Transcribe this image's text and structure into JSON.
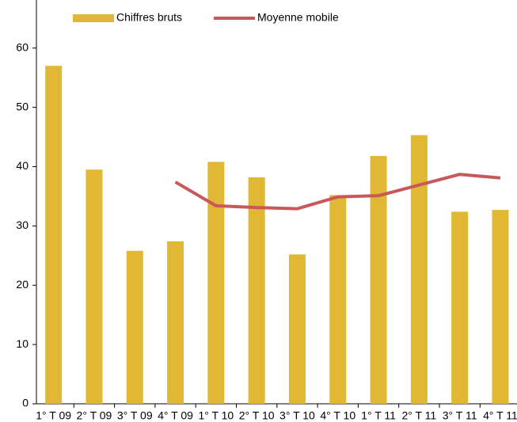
{
  "chart_data": {
    "type": "bar",
    "categories": [
      "1° T 09",
      "2° T 09",
      "3° T 09",
      "4° T 09",
      "1° T 10",
      "2° T 10",
      "3° T 10",
      "4° T 10",
      "1° T 11",
      "2° T 11",
      "3° T 11",
      "4° T 11"
    ],
    "series": [
      {
        "name": "Chiffres bruts",
        "type": "bar",
        "color": "#e0b834",
        "values": [
          57,
          39.5,
          25.8,
          27.4,
          40.8,
          38.2,
          25.2,
          35.2,
          41.8,
          45.3,
          32.4,
          32.7
        ]
      },
      {
        "name": "Moyenne mobile",
        "type": "line",
        "color": "#c9585a",
        "values": [
          null,
          null,
          null,
          37.4,
          33.4,
          33.1,
          32.9,
          34.9,
          35.1,
          36.9,
          38.7,
          38.1
        ]
      }
    ],
    "ylim": [
      0,
      68
    ],
    "yticks": [
      0,
      10,
      20,
      30,
      40,
      50,
      60
    ],
    "legend": "top"
  }
}
